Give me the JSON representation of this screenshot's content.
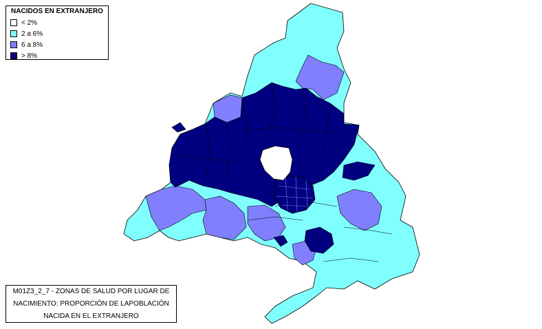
{
  "legend": {
    "title": "NACIDOS EN EXTRANJERO",
    "items": [
      {
        "label": "< 2%",
        "color": "#ffffff"
      },
      {
        "label": "2 a 6%",
        "color": "#80ffff"
      },
      {
        "label": "6 a 8%",
        "color": "#8080ff"
      },
      {
        "label": "> 8%",
        "color": "#000080"
      }
    ]
  },
  "caption": {
    "line1": "M01Z3_2_7 - ZONAS DE SALUD POR LUGAR DE",
    "line2": "NACIMIENTO: PROPORCIÓN DE LAPOBLACIÓN",
    "line3": "NACIDA EN EL EXTRANJERO"
  }
}
